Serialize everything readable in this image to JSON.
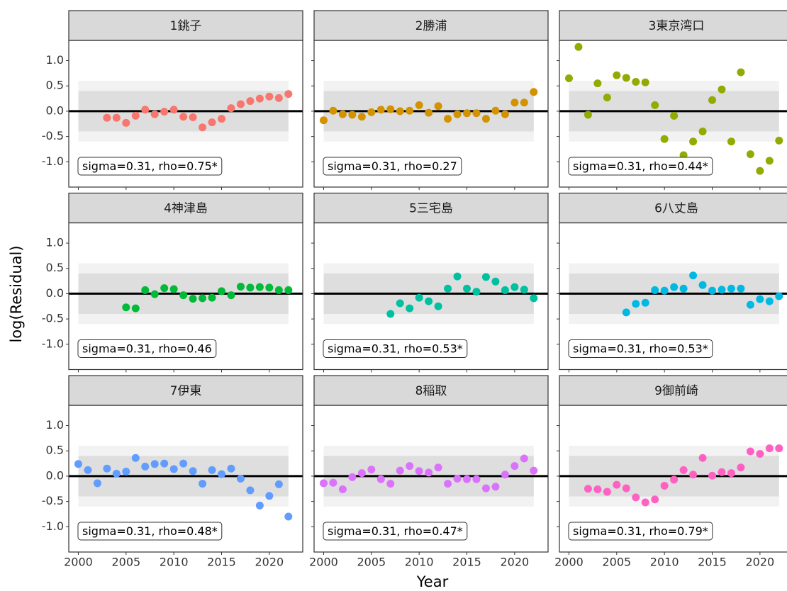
{
  "axis_labels": {
    "x": "Year",
    "y": "log(Residual)"
  },
  "scales": {
    "xlim": [
      1999,
      2023.5
    ],
    "ylim": [
      -1.5,
      1.4
    ],
    "xticks": [
      2000,
      2005,
      2010,
      2015,
      2020
    ],
    "yticks": [
      {
        "value": 1.0,
        "label": "1.0"
      },
      {
        "value": 0.5,
        "label": "0.5"
      },
      {
        "value": 0.0,
        "label": "0.0"
      },
      {
        "value": -0.5,
        "label": "-0.5"
      },
      {
        "value": -1.0,
        "label": "-1.0"
      }
    ],
    "band_xlim": [
      2000,
      2022
    ],
    "bands": [
      {
        "ymin": -0.6,
        "ymax": 0.6,
        "color": "#f2f2f2"
      },
      {
        "ymin": -0.4,
        "ymax": 0.4,
        "color": "#dedede"
      }
    ],
    "hline": 0
  },
  "chart_data": [
    {
      "type": "scatter",
      "title": "1銚子",
      "color": "#F8766D",
      "annotation": "sigma=0.31, rho=0.75*",
      "x": [
        2003,
        2004,
        2005,
        2006,
        2007,
        2008,
        2009,
        2010,
        2011,
        2012,
        2013,
        2014,
        2015,
        2016,
        2017,
        2018,
        2019,
        2020,
        2021,
        2022
      ],
      "values": [
        -0.13,
        -0.13,
        -0.23,
        -0.09,
        0.03,
        -0.06,
        -0.01,
        0.03,
        -0.11,
        -0.12,
        -0.32,
        -0.22,
        -0.15,
        0.06,
        0.14,
        0.2,
        0.25,
        0.29,
        0.26,
        0.34
      ]
    },
    {
      "type": "scatter",
      "title": "2勝浦",
      "color": "#D39200",
      "annotation": "sigma=0.31, rho=0.27",
      "x": [
        2000,
        2001,
        2002,
        2003,
        2004,
        2005,
        2006,
        2007,
        2008,
        2009,
        2010,
        2011,
        2012,
        2013,
        2014,
        2015,
        2016,
        2017,
        2018,
        2019,
        2020,
        2021,
        2022
      ],
      "values": [
        -0.18,
        0.01,
        -0.06,
        -0.07,
        -0.11,
        -0.02,
        0.03,
        0.04,
        0.0,
        0.01,
        0.12,
        -0.03,
        0.1,
        -0.15,
        -0.06,
        -0.04,
        -0.04,
        -0.15,
        0.01,
        -0.06,
        0.17,
        0.17,
        0.38
      ]
    },
    {
      "type": "scatter",
      "title": "3東京湾口",
      "color": "#93AA00",
      "annotation": "sigma=0.31, rho=0.44*",
      "x": [
        2000,
        2001,
        2002,
        2003,
        2004,
        2005,
        2006,
        2007,
        2008,
        2009,
        2010,
        2011,
        2012,
        2013,
        2014,
        2015,
        2016,
        2017,
        2018,
        2019,
        2020,
        2021,
        2022
      ],
      "values": [
        0.65,
        1.27,
        -0.07,
        0.55,
        0.27,
        0.71,
        0.66,
        0.58,
        0.57,
        0.12,
        -0.55,
        -0.09,
        -0.87,
        -0.6,
        -0.4,
        0.22,
        0.43,
        -0.6,
        0.77,
        -0.85,
        -1.18,
        -0.98,
        -0.58
      ]
    },
    {
      "type": "scatter",
      "title": "4神津島",
      "color": "#00BA38",
      "annotation": "sigma=0.31, rho=0.46",
      "x": [
        2005,
        2006,
        2007,
        2008,
        2009,
        2010,
        2011,
        2012,
        2013,
        2014,
        2015,
        2016,
        2017,
        2018,
        2019,
        2020,
        2021,
        2022
      ],
      "values": [
        -0.27,
        -0.29,
        0.07,
        -0.01,
        0.11,
        0.09,
        -0.03,
        -0.1,
        -0.09,
        -0.08,
        0.05,
        -0.03,
        0.14,
        0.12,
        0.13,
        0.12,
        0.07,
        0.07
      ]
    },
    {
      "type": "scatter",
      "title": "5三宅島",
      "color": "#00C19F",
      "annotation": "sigma=0.31, rho=0.53*",
      "x": [
        2007,
        2008,
        2009,
        2010,
        2011,
        2012,
        2013,
        2014,
        2015,
        2016,
        2017,
        2018,
        2019,
        2020,
        2021,
        2022
      ],
      "values": [
        -0.4,
        -0.19,
        -0.29,
        -0.08,
        -0.15,
        -0.25,
        0.1,
        0.34,
        0.1,
        0.04,
        0.33,
        0.24,
        0.07,
        0.13,
        0.08,
        -0.09
      ]
    },
    {
      "type": "scatter",
      "title": "6八丈島",
      "color": "#00B9E3",
      "annotation": "sigma=0.31, rho=0.53*",
      "x": [
        2006,
        2007,
        2008,
        2009,
        2010,
        2011,
        2012,
        2013,
        2014,
        2015,
        2016,
        2017,
        2018,
        2019,
        2020,
        2021,
        2022
      ],
      "values": [
        -0.37,
        -0.2,
        -0.18,
        0.07,
        0.06,
        0.13,
        0.1,
        0.36,
        0.17,
        0.06,
        0.08,
        0.1,
        0.1,
        -0.22,
        -0.11,
        -0.15,
        -0.05
      ]
    },
    {
      "type": "scatter",
      "title": "7伊東",
      "color": "#619CFF",
      "annotation": "sigma=0.31, rho=0.48*",
      "x": [
        2000,
        2001,
        2002,
        2003,
        2004,
        2005,
        2006,
        2007,
        2008,
        2009,
        2010,
        2011,
        2012,
        2013,
        2014,
        2015,
        2016,
        2017,
        2018,
        2019,
        2020,
        2021,
        2022
      ],
      "values": [
        0.24,
        0.12,
        -0.14,
        0.15,
        0.05,
        0.09,
        0.36,
        0.19,
        0.24,
        0.25,
        0.14,
        0.25,
        0.1,
        -0.15,
        0.12,
        0.04,
        0.15,
        -0.05,
        -0.28,
        -0.58,
        -0.39,
        -0.16,
        -0.8
      ]
    },
    {
      "type": "scatter",
      "title": "8稲取",
      "color": "#DB72FB",
      "annotation": "sigma=0.31, rho=0.47*",
      "x": [
        2000,
        2001,
        2002,
        2003,
        2004,
        2005,
        2006,
        2007,
        2008,
        2009,
        2010,
        2011,
        2012,
        2013,
        2014,
        2015,
        2016,
        2017,
        2018,
        2019,
        2020,
        2021,
        2022
      ],
      "values": [
        -0.14,
        -0.13,
        -0.26,
        -0.02,
        0.06,
        0.13,
        -0.06,
        -0.15,
        0.11,
        0.2,
        0.1,
        0.07,
        0.17,
        -0.15,
        -0.05,
        -0.06,
        -0.06,
        -0.24,
        -0.21,
        0.03,
        0.2,
        0.35,
        0.11
      ]
    },
    {
      "type": "scatter",
      "title": "9御前崎",
      "color": "#FF61C3",
      "annotation": "sigma=0.31, rho=0.79*",
      "x": [
        2002,
        2003,
        2004,
        2005,
        2006,
        2007,
        2008,
        2009,
        2010,
        2011,
        2012,
        2013,
        2014,
        2015,
        2016,
        2017,
        2018,
        2019,
        2020,
        2021,
        2022
      ],
      "values": [
        -0.25,
        -0.26,
        -0.31,
        -0.17,
        -0.24,
        -0.42,
        -0.52,
        -0.46,
        -0.19,
        -0.07,
        0.12,
        0.03,
        0.36,
        0.01,
        0.08,
        0.06,
        0.17,
        0.49,
        0.44,
        0.55,
        0.55
      ]
    }
  ]
}
